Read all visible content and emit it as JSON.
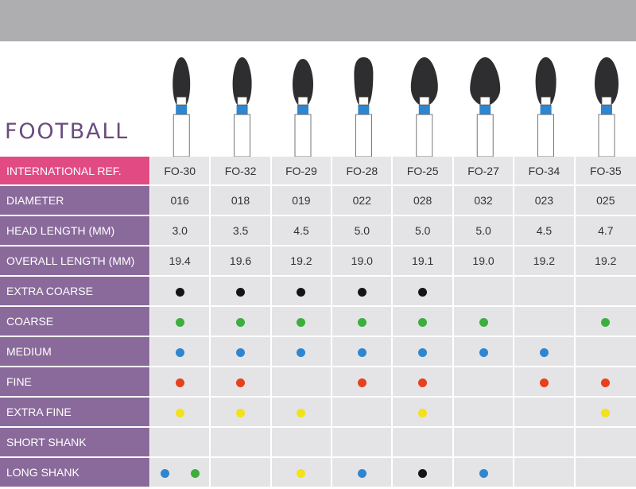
{
  "title": "FOOTBALL",
  "colors": {
    "black": "#151515",
    "green": "#3cae3c",
    "blue": "#2f86d0",
    "red": "#e8401c",
    "yellow": "#f3e11a",
    "header_accent": "#e24a83",
    "label_bg": "#8a6a9b",
    "title_color": "#6a4c7e"
  },
  "bur_icon": "diamond-bur-icon",
  "header": {
    "label": "INTERNATIONAL REF.",
    "refs": [
      "FO-30",
      "FO-32",
      "FO-29",
      "FO-28",
      "FO-25",
      "FO-27",
      "FO-34",
      "FO-35"
    ]
  },
  "text_rows": [
    {
      "label": "DIAMETER",
      "values": [
        "016",
        "018",
        "019",
        "022",
        "028",
        "032",
        "023",
        "025"
      ]
    },
    {
      "label": "HEAD LENGTH (MM)",
      "values": [
        "3.0",
        "3.5",
        "4.5",
        "5.0",
        "5.0",
        "5.0",
        "4.5",
        "4.7"
      ]
    },
    {
      "label": "OVERALL LENGTH (MM)",
      "values": [
        "19.4",
        "19.6",
        "19.2",
        "19.0",
        "19.1",
        "19.0",
        "19.2",
        "19.2"
      ]
    }
  ],
  "dot_rows": [
    {
      "label": "EXTRA COARSE",
      "cells": [
        [
          "black"
        ],
        [
          "black"
        ],
        [
          "black"
        ],
        [
          "black"
        ],
        [
          "black"
        ],
        [],
        [],
        []
      ]
    },
    {
      "label": "COARSE",
      "cells": [
        [
          "green"
        ],
        [
          "green"
        ],
        [
          "green"
        ],
        [
          "green"
        ],
        [
          "green"
        ],
        [
          "green"
        ],
        [],
        [
          "green"
        ]
      ]
    },
    {
      "label": "MEDIUM",
      "cells": [
        [
          "blue"
        ],
        [
          "blue"
        ],
        [
          "blue"
        ],
        [
          "blue"
        ],
        [
          "blue"
        ],
        [
          "blue"
        ],
        [
          "blue"
        ],
        []
      ]
    },
    {
      "label": "FINE",
      "cells": [
        [
          "red"
        ],
        [
          "red"
        ],
        [],
        [
          "red"
        ],
        [
          "red"
        ],
        [],
        [
          "red"
        ],
        [
          "red"
        ]
      ]
    },
    {
      "label": "EXTRA FINE",
      "cells": [
        [
          "yellow"
        ],
        [
          "yellow"
        ],
        [
          "yellow"
        ],
        [],
        [
          "yellow"
        ],
        [],
        [],
        [
          "yellow"
        ]
      ]
    },
    {
      "label": "SHORT SHANK",
      "cells": [
        [],
        [],
        [],
        [],
        [],
        [],
        [],
        []
      ]
    },
    {
      "label": "LONG SHANK",
      "cells": [
        [
          "blue",
          "green"
        ],
        [],
        [
          "yellow"
        ],
        [
          "blue"
        ],
        [
          "black"
        ],
        [
          "blue"
        ],
        [],
        []
      ]
    }
  ]
}
